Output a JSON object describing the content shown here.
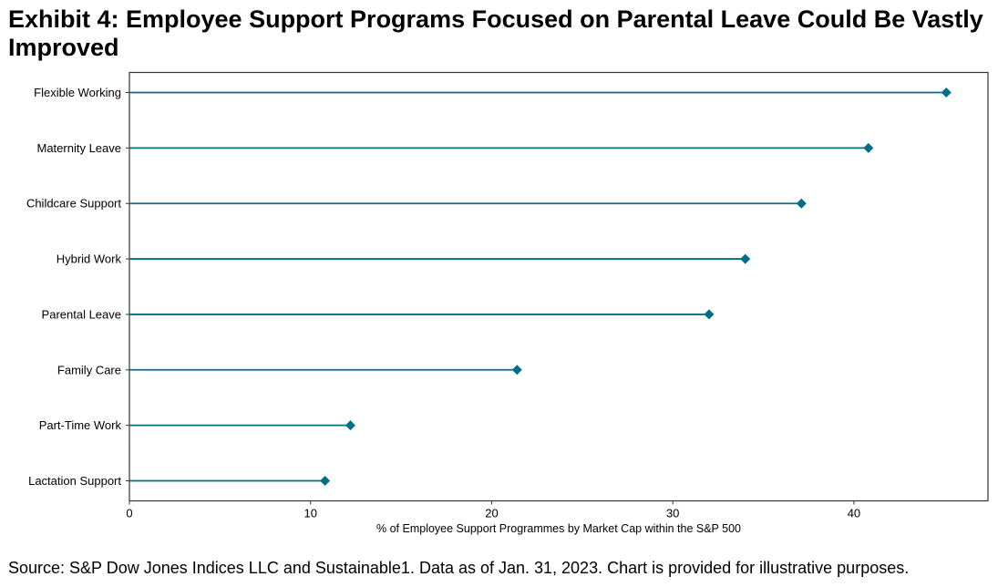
{
  "title": "Exhibit 4: Employee Support Programs Focused on Parental Leave Could Be Vastly Improved",
  "source": "Source: S&P Dow Jones Indices LLC and Sustainable1. Data as of Jan. 31, 2023. Chart is provided for illustrative purposes.",
  "chart_data": {
    "type": "lollipop",
    "orientation": "horizontal",
    "title": "Exhibit 4: Employee Support Programs Focused on Parental Leave Could Be Vastly Improved",
    "xlabel": "% of Employee Support Programmes by Market Cap within the S&P 500",
    "ylabel": "",
    "categories": [
      "Flexible Working",
      "Maternity Leave",
      "Childcare Support",
      "Hybrid Work",
      "Parental Leave",
      "Family Care",
      "Part-Time Work",
      "Lactation Support"
    ],
    "values": [
      45.1,
      40.8,
      37.1,
      34.0,
      32.0,
      21.4,
      12.2,
      10.8
    ],
    "xlim": [
      0,
      47.4
    ],
    "xticks": [
      0,
      10,
      20,
      30,
      40
    ],
    "grid": false,
    "legend": "none",
    "marker": "diamond",
    "color": "#006F86"
  }
}
